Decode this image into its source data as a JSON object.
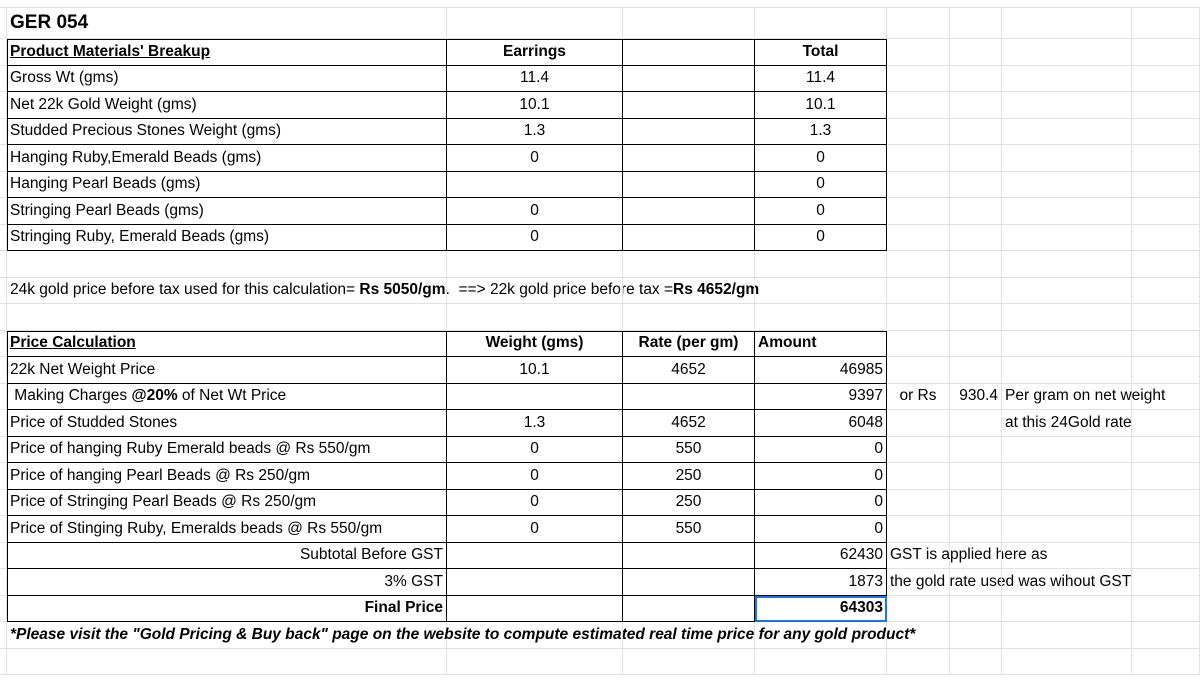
{
  "sheet": {
    "product_code": "GER 054"
  },
  "materials": {
    "header": {
      "label": "Product Materials' Breakup",
      "earrings": "Earrings",
      "total": "Total"
    },
    "rows": [
      {
        "label": "Gross Wt (gms)",
        "earrings": "11.4",
        "total": "11.4"
      },
      {
        "label": "Net 22k Gold Weight (gms)",
        "earrings": "10.1",
        "total": "10.1"
      },
      {
        "label": "Studded Precious Stones Weight (gms)",
        "earrings": "1.3",
        "total": "1.3"
      },
      {
        "label": "Hanging Ruby,Emerald Beads (gms)",
        "earrings": "0",
        "total": "0"
      },
      {
        "label": "Hanging Pearl Beads (gms)",
        "earrings": "",
        "total": "0"
      },
      {
        "label": "Stringing Pearl Beads (gms)",
        "earrings": "0",
        "total": "0"
      },
      {
        "label": "Stringing Ruby, Emerald Beads (gms)",
        "earrings": "0",
        "total": "0"
      }
    ]
  },
  "gold_rate_note": [
    {
      "text": "24k gold price before tax used for this calculation= ",
      "bold": false
    },
    {
      "text": "Rs 5050/gm",
      "bold": true
    },
    {
      "text": ".  ==> 22k gold price before tax =",
      "bold": false
    },
    {
      "text": "Rs 4652/gm",
      "bold": true
    }
  ],
  "price_calc": {
    "header": {
      "label": "Price Calculation",
      "weight": "Weight (gms)",
      "rate": "Rate (per gm)",
      "amount": "Amount"
    },
    "rows": [
      {
        "label": [
          {
            "text": "22k Net Weight Price",
            "bold": false
          }
        ],
        "weight": "10.1",
        "rate": "4652",
        "amount": "46985"
      },
      {
        "label": [
          {
            "text": " Making Charges ",
            "bold": false
          },
          {
            "text": "@20%",
            "bold": true
          },
          {
            "text": " of Net Wt Price",
            "bold": false
          }
        ],
        "weight": "",
        "rate": "",
        "amount": "9397",
        "note1": "or Rs",
        "note2": "930.4",
        "note3": "Per gram on net weight"
      },
      {
        "label": [
          {
            "text": "Price of Studded Stones",
            "bold": false
          }
        ],
        "weight": "1.3",
        "rate": "4652",
        "amount": "6048",
        "note3": "at this 24Gold rate"
      },
      {
        "label": [
          {
            "text": "Price of hanging Ruby Emerald beads @ Rs 550/gm",
            "bold": false
          }
        ],
        "weight": "0",
        "rate": "550",
        "amount": "0"
      },
      {
        "label": [
          {
            "text": "Price of hanging Pearl Beads @ Rs 250/gm",
            "bold": false
          }
        ],
        "weight": "0",
        "rate": "250",
        "amount": "0"
      },
      {
        "label": [
          {
            "text": "Price of Stringing Pearl Beads @ Rs 250/gm",
            "bold": false
          }
        ],
        "weight": "0",
        "rate": "250",
        "amount": "0"
      },
      {
        "label": [
          {
            "text": "Price of Stinging Ruby, Emeralds beads @ Rs 550/gm",
            "bold": false
          }
        ],
        "weight": "0",
        "rate": "550",
        "amount": "0"
      }
    ],
    "subtotal": {
      "label": "Subtotal Before GST",
      "amount": "62430",
      "note": "GST is applied here as"
    },
    "gst": {
      "label": "3% GST",
      "amount": "1873",
      "note": "the gold rate used was wihout GST"
    },
    "final": {
      "label": "Final Price",
      "amount": "64303"
    }
  },
  "footnote": "*Please visit the \"Gold Pricing & Buy back\" page on the website to compute estimated real time price for any gold product*",
  "colors": {
    "selection": "#1a73e8",
    "gridline": "#e2e2e2",
    "border": "#000000"
  }
}
